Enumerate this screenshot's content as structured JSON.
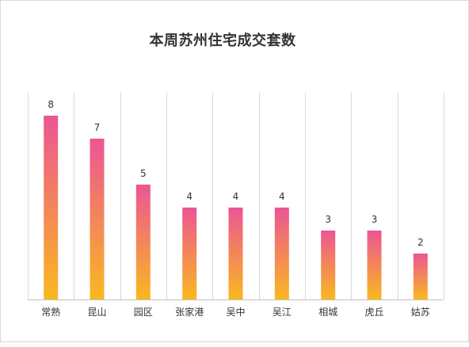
{
  "chart_data": {
    "type": "bar",
    "title": "本周苏州住宅成交套数",
    "categories": [
      "常熟",
      "昆山",
      "园区",
      "张家港",
      "吴中",
      "吴江",
      "相城",
      "虎丘",
      "姑苏"
    ],
    "values": [
      8,
      7,
      5,
      4,
      4,
      4,
      3,
      3,
      2
    ],
    "ylim": [
      0,
      8
    ],
    "grid": "vertical-category-separators",
    "data_labels": true,
    "colors": {
      "bar_top": "#ec5594",
      "bar_bottom": "#f9b820",
      "grid": "#d9d9d9",
      "text": "#333333"
    }
  }
}
